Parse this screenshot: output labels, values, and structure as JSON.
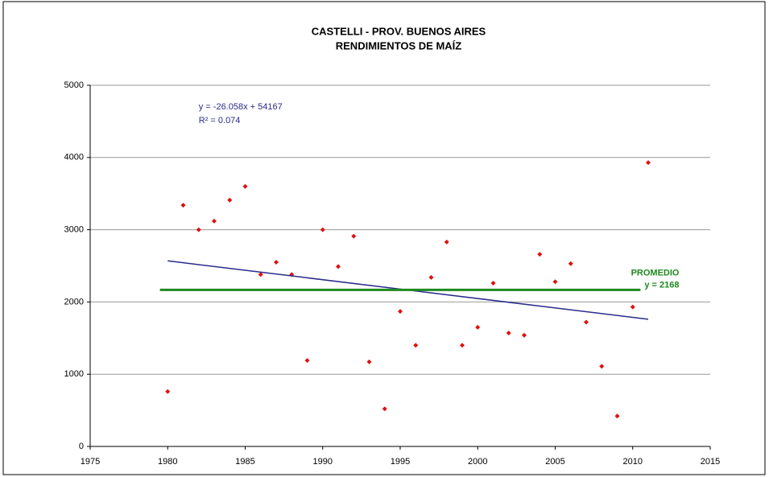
{
  "chart_data": {
    "type": "scatter",
    "title": [
      "CASTELLI - PROV. BUENOS AIRES",
      "RENDIMIENTOS DE MAÍZ"
    ],
    "xlim": [
      1975,
      2015
    ],
    "xticks": [
      1975,
      1980,
      1985,
      1990,
      1995,
      2000,
      2005,
      2010,
      2015
    ],
    "ylim": [
      0,
      5000
    ],
    "yticks": [
      0,
      1000,
      2000,
      3000,
      4000,
      5000
    ],
    "grid": true,
    "series": [
      {
        "type": "scatter",
        "color": "#e01010",
        "x": [
          1980,
          1981,
          1982,
          1983,
          1984,
          1985,
          1986,
          1987,
          1988,
          1989,
          1990,
          1991,
          1992,
          1993,
          1994,
          1995,
          1996,
          1997,
          1998,
          1999,
          2000,
          2001,
          2002,
          2003,
          2004,
          2005,
          2006,
          2007,
          2008,
          2009,
          2010,
          2011
        ],
        "values": [
          760,
          3340,
          3000,
          3120,
          3410,
          3600,
          2380,
          2550,
          2380,
          1190,
          3000,
          2490,
          2910,
          1170,
          520,
          1870,
          1400,
          2340,
          2830,
          1400,
          1650,
          2260,
          1570,
          1540,
          2660,
          2280,
          2530,
          1720,
          1110,
          420,
          1930,
          3930
        ]
      },
      {
        "type": "line",
        "color": "#2a2a8c",
        "width": 1.5,
        "x": [
          1980,
          2011
        ],
        "values": [
          2569,
          1761
        ]
      },
      {
        "type": "line",
        "color": "#1e8a1e",
        "width": 3,
        "x": [
          1979.5,
          2010.5
        ],
        "values": [
          2168,
          2168
        ]
      }
    ],
    "annotations": [
      {
        "text": "y = -26.058x + 54167",
        "color": "#2a2a8c",
        "x": 1982,
        "y": 4700
      },
      {
        "text": "R² = 0.074",
        "color": "#2a2a8c",
        "x": 1982,
        "y": 4510
      },
      {
        "text": "PROMEDIO",
        "color": "#1e8a1e",
        "x": 2013,
        "y": 2400,
        "bold": true
      },
      {
        "text": "y = 2168",
        "color": "#1e8a1e",
        "x": 2013,
        "y": 2230,
        "bold": true
      }
    ]
  }
}
